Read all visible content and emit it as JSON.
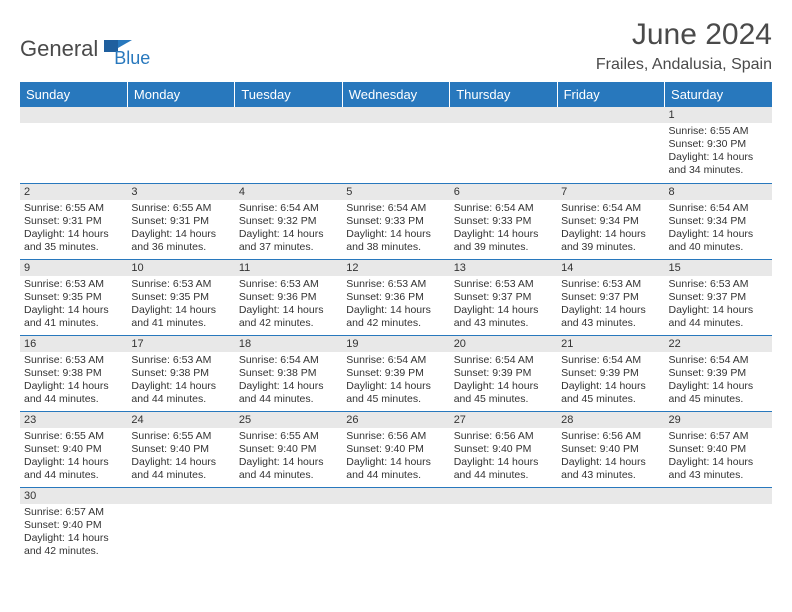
{
  "logo": {
    "text1": "General",
    "text2": "Blue"
  },
  "title": "June 2024",
  "location": "Frailes, Andalusia, Spain",
  "colors": {
    "header_bg": "#2878bd",
    "header_fg": "#ffffff",
    "daynum_bg": "#e8e8e8",
    "row_border": "#2878bd",
    "text": "#333333",
    "logo_gray": "#4a4a4a",
    "logo_blue": "#2878bd"
  },
  "day_labels": [
    "Sunday",
    "Monday",
    "Tuesday",
    "Wednesday",
    "Thursday",
    "Friday",
    "Saturday"
  ],
  "weeks": [
    [
      null,
      null,
      null,
      null,
      null,
      null,
      {
        "d": "1",
        "sr": "6:55 AM",
        "ss": "9:30 PM",
        "dl": "14 hours and 34 minutes."
      }
    ],
    [
      {
        "d": "2",
        "sr": "6:55 AM",
        "ss": "9:31 PM",
        "dl": "14 hours and 35 minutes."
      },
      {
        "d": "3",
        "sr": "6:55 AM",
        "ss": "9:31 PM",
        "dl": "14 hours and 36 minutes."
      },
      {
        "d": "4",
        "sr": "6:54 AM",
        "ss": "9:32 PM",
        "dl": "14 hours and 37 minutes."
      },
      {
        "d": "5",
        "sr": "6:54 AM",
        "ss": "9:33 PM",
        "dl": "14 hours and 38 minutes."
      },
      {
        "d": "6",
        "sr": "6:54 AM",
        "ss": "9:33 PM",
        "dl": "14 hours and 39 minutes."
      },
      {
        "d": "7",
        "sr": "6:54 AM",
        "ss": "9:34 PM",
        "dl": "14 hours and 39 minutes."
      },
      {
        "d": "8",
        "sr": "6:54 AM",
        "ss": "9:34 PM",
        "dl": "14 hours and 40 minutes."
      }
    ],
    [
      {
        "d": "9",
        "sr": "6:53 AM",
        "ss": "9:35 PM",
        "dl": "14 hours and 41 minutes."
      },
      {
        "d": "10",
        "sr": "6:53 AM",
        "ss": "9:35 PM",
        "dl": "14 hours and 41 minutes."
      },
      {
        "d": "11",
        "sr": "6:53 AM",
        "ss": "9:36 PM",
        "dl": "14 hours and 42 minutes."
      },
      {
        "d": "12",
        "sr": "6:53 AM",
        "ss": "9:36 PM",
        "dl": "14 hours and 42 minutes."
      },
      {
        "d": "13",
        "sr": "6:53 AM",
        "ss": "9:37 PM",
        "dl": "14 hours and 43 minutes."
      },
      {
        "d": "14",
        "sr": "6:53 AM",
        "ss": "9:37 PM",
        "dl": "14 hours and 43 minutes."
      },
      {
        "d": "15",
        "sr": "6:53 AM",
        "ss": "9:37 PM",
        "dl": "14 hours and 44 minutes."
      }
    ],
    [
      {
        "d": "16",
        "sr": "6:53 AM",
        "ss": "9:38 PM",
        "dl": "14 hours and 44 minutes."
      },
      {
        "d": "17",
        "sr": "6:53 AM",
        "ss": "9:38 PM",
        "dl": "14 hours and 44 minutes."
      },
      {
        "d": "18",
        "sr": "6:54 AM",
        "ss": "9:38 PM",
        "dl": "14 hours and 44 minutes."
      },
      {
        "d": "19",
        "sr": "6:54 AM",
        "ss": "9:39 PM",
        "dl": "14 hours and 45 minutes."
      },
      {
        "d": "20",
        "sr": "6:54 AM",
        "ss": "9:39 PM",
        "dl": "14 hours and 45 minutes."
      },
      {
        "d": "21",
        "sr": "6:54 AM",
        "ss": "9:39 PM",
        "dl": "14 hours and 45 minutes."
      },
      {
        "d": "22",
        "sr": "6:54 AM",
        "ss": "9:39 PM",
        "dl": "14 hours and 45 minutes."
      }
    ],
    [
      {
        "d": "23",
        "sr": "6:55 AM",
        "ss": "9:40 PM",
        "dl": "14 hours and 44 minutes."
      },
      {
        "d": "24",
        "sr": "6:55 AM",
        "ss": "9:40 PM",
        "dl": "14 hours and 44 minutes."
      },
      {
        "d": "25",
        "sr": "6:55 AM",
        "ss": "9:40 PM",
        "dl": "14 hours and 44 minutes."
      },
      {
        "d": "26",
        "sr": "6:56 AM",
        "ss": "9:40 PM",
        "dl": "14 hours and 44 minutes."
      },
      {
        "d": "27",
        "sr": "6:56 AM",
        "ss": "9:40 PM",
        "dl": "14 hours and 44 minutes."
      },
      {
        "d": "28",
        "sr": "6:56 AM",
        "ss": "9:40 PM",
        "dl": "14 hours and 43 minutes."
      },
      {
        "d": "29",
        "sr": "6:57 AM",
        "ss": "9:40 PM",
        "dl": "14 hours and 43 minutes."
      }
    ],
    [
      {
        "d": "30",
        "sr": "6:57 AM",
        "ss": "9:40 PM",
        "dl": "14 hours and 42 minutes."
      },
      null,
      null,
      null,
      null,
      null,
      null
    ]
  ],
  "labels": {
    "sunrise": "Sunrise:",
    "sunset": "Sunset:",
    "daylight": "Daylight:"
  }
}
